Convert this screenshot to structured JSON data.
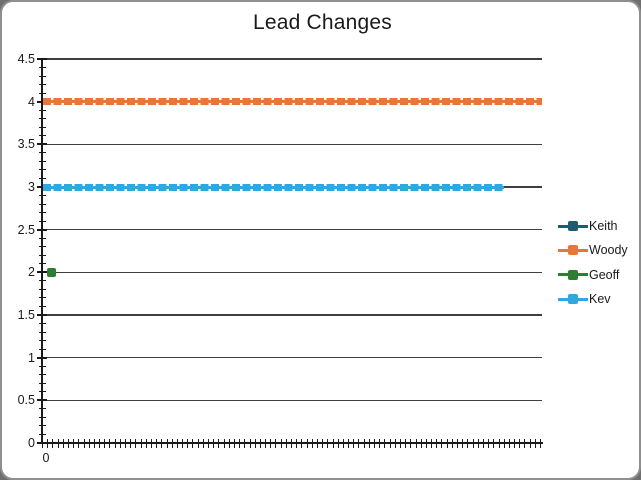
{
  "chart_data": {
    "type": "line",
    "title": "Lead Changes",
    "y_axis": {
      "min": 0,
      "max": 4.5,
      "major_step": 0.5,
      "minor_step": 0.1,
      "tick_labels": [
        "0",
        "0.5",
        "1",
        "1.5",
        "2",
        "2.5",
        "3",
        "3.5",
        "4",
        "4.5"
      ]
    },
    "x_axis": {
      "first_label": "0",
      "tick_count": 97,
      "only_first_label_visible": true
    },
    "grid": true,
    "colors": {
      "axis": "#1a1a1a",
      "gridline": "#3f3f3f",
      "text": "#1a1a1a"
    },
    "legend": {
      "position": "right",
      "entries": [
        {
          "name": "Keith",
          "color": "#1F5C73"
        },
        {
          "name": "Woody",
          "color": "#E8763C"
        },
        {
          "name": "Geoff",
          "color": "#2E7D32"
        },
        {
          "name": "Kev",
          "color": "#2FA8DF"
        }
      ]
    },
    "series": [
      {
        "name": "Keith",
        "color": "#1F5C73",
        "value": null,
        "style": "hidden"
      },
      {
        "name": "Woody",
        "color": "#E8763C",
        "value": 4,
        "style": "dashed",
        "start_frac": 0.002,
        "end_frac": 1.0
      },
      {
        "name": "Geoff",
        "color": "#2E7D32",
        "value": 2,
        "style": "single-marker",
        "point_frac": 0.014
      },
      {
        "name": "Kev",
        "color": "#2FA8DF",
        "value": 3,
        "style": "dashed",
        "start_frac": 0.002,
        "end_frac": 0.924
      }
    ]
  }
}
